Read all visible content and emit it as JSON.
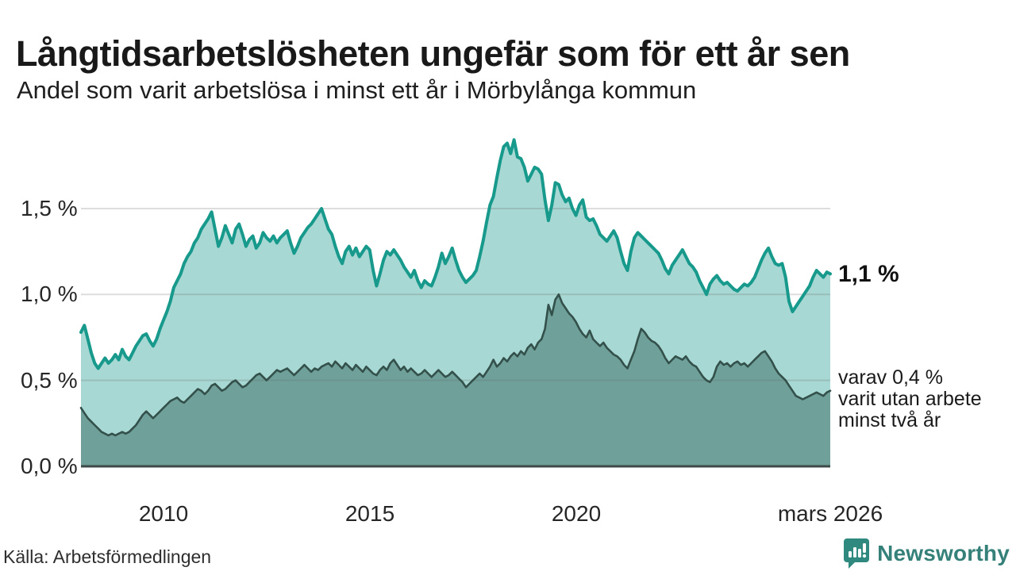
{
  "header": {
    "title": "Långtidsarbetslösheten ungefär som för ett år sen",
    "subtitle": "Andel som varit arbetslösa i minst ett år i Mörbylånga kommun"
  },
  "annotations": {
    "latest_total": "1,1 %",
    "sub_lines": [
      "varav 0,4 %",
      "varit utan arbete",
      "minst två år"
    ]
  },
  "footer": {
    "source": "Källa: Arbetsförmedlingen",
    "brand": "Newsworthy"
  },
  "colors": {
    "line_total": "#17998c",
    "fill_total": "#a8d8d3",
    "line_two_years": "#33504b",
    "fill_two_years": "#70a09a",
    "baseline": "#3d4a47",
    "gridline": "rgba(100,100,100,0.22)",
    "brand_teal": "#35817a",
    "logo_bg": "#2f897e"
  },
  "chart_data": {
    "type": "area",
    "title": "Långtidsarbetslösheten ungefär som för ett år sen",
    "subtitle": "Andel som varit arbetslösa i minst ett år i Mörbylånga kommun",
    "unit": "%",
    "x_start_year": 2008.0,
    "x_end_year": 2026.167,
    "points_per_year": 12,
    "ylim": [
      0,
      1.95
    ],
    "grid": true,
    "y_ticks": [
      {
        "value": 0.0,
        "label": "0,0 %"
      },
      {
        "value": 0.5,
        "label": "0,5 %"
      },
      {
        "value": 1.0,
        "label": "1,0 %"
      },
      {
        "value": 1.5,
        "label": "1,5 %"
      }
    ],
    "x_ticks": [
      {
        "year": 2010,
        "label": "2010"
      },
      {
        "year": 2015,
        "label": "2015"
      },
      {
        "year": 2020,
        "label": "2020"
      },
      {
        "year": 2026.167,
        "label": "mars 2026"
      }
    ],
    "latest": {
      "total": 1.1,
      "two_years": 0.4
    },
    "series": [
      {
        "name": "arbetslösa minst ett år",
        "values": [
          0.78,
          0.82,
          0.74,
          0.66,
          0.6,
          0.57,
          0.6,
          0.63,
          0.6,
          0.62,
          0.65,
          0.62,
          0.68,
          0.64,
          0.62,
          0.66,
          0.7,
          0.73,
          0.76,
          0.77,
          0.73,
          0.7,
          0.74,
          0.8,
          0.85,
          0.9,
          0.96,
          1.04,
          1.08,
          1.12,
          1.18,
          1.22,
          1.25,
          1.3,
          1.33,
          1.38,
          1.41,
          1.44,
          1.48,
          1.38,
          1.28,
          1.33,
          1.4,
          1.35,
          1.3,
          1.38,
          1.41,
          1.35,
          1.28,
          1.32,
          1.34,
          1.27,
          1.3,
          1.36,
          1.33,
          1.31,
          1.34,
          1.3,
          1.33,
          1.35,
          1.37,
          1.3,
          1.24,
          1.28,
          1.33,
          1.36,
          1.39,
          1.41,
          1.44,
          1.47,
          1.5,
          1.44,
          1.38,
          1.35,
          1.28,
          1.22,
          1.18,
          1.25,
          1.28,
          1.23,
          1.27,
          1.22,
          1.25,
          1.28,
          1.26,
          1.14,
          1.05,
          1.12,
          1.2,
          1.25,
          1.23,
          1.26,
          1.23,
          1.2,
          1.16,
          1.13,
          1.1,
          1.14,
          1.08,
          1.04,
          1.08,
          1.06,
          1.05,
          1.1,
          1.16,
          1.24,
          1.18,
          1.22,
          1.27,
          1.2,
          1.14,
          1.1,
          1.07,
          1.09,
          1.11,
          1.14,
          1.22,
          1.31,
          1.42,
          1.52,
          1.57,
          1.68,
          1.78,
          1.86,
          1.88,
          1.82,
          1.9,
          1.8,
          1.79,
          1.74,
          1.66,
          1.7,
          1.74,
          1.73,
          1.7,
          1.55,
          1.43,
          1.52,
          1.65,
          1.64,
          1.58,
          1.54,
          1.56,
          1.5,
          1.46,
          1.52,
          1.55,
          1.45,
          1.43,
          1.44,
          1.4,
          1.35,
          1.33,
          1.31,
          1.34,
          1.37,
          1.33,
          1.25,
          1.18,
          1.14,
          1.25,
          1.33,
          1.36,
          1.34,
          1.32,
          1.3,
          1.28,
          1.26,
          1.24,
          1.2,
          1.15,
          1.12,
          1.17,
          1.2,
          1.23,
          1.26,
          1.22,
          1.18,
          1.16,
          1.13,
          1.08,
          1.04,
          1.0,
          1.06,
          1.09,
          1.11,
          1.08,
          1.06,
          1.07,
          1.05,
          1.03,
          1.02,
          1.04,
          1.06,
          1.05,
          1.07,
          1.1,
          1.15,
          1.2,
          1.24,
          1.27,
          1.22,
          1.18,
          1.17,
          1.18,
          1.1,
          0.96,
          0.9,
          0.93,
          0.96,
          0.99,
          1.02,
          1.05,
          1.1,
          1.14,
          1.12,
          1.1,
          1.13,
          1.12
        ]
      },
      {
        "name": "varav utan arbete minst två år",
        "values": [
          0.34,
          0.31,
          0.28,
          0.26,
          0.24,
          0.22,
          0.2,
          0.19,
          0.18,
          0.19,
          0.18,
          0.19,
          0.2,
          0.19,
          0.2,
          0.22,
          0.24,
          0.27,
          0.3,
          0.32,
          0.3,
          0.28,
          0.3,
          0.32,
          0.34,
          0.36,
          0.38,
          0.39,
          0.4,
          0.38,
          0.37,
          0.39,
          0.41,
          0.43,
          0.45,
          0.44,
          0.42,
          0.44,
          0.47,
          0.48,
          0.46,
          0.44,
          0.45,
          0.47,
          0.49,
          0.5,
          0.48,
          0.46,
          0.47,
          0.49,
          0.51,
          0.53,
          0.54,
          0.52,
          0.5,
          0.52,
          0.54,
          0.56,
          0.55,
          0.56,
          0.57,
          0.55,
          0.53,
          0.55,
          0.57,
          0.59,
          0.57,
          0.55,
          0.57,
          0.56,
          0.58,
          0.59,
          0.6,
          0.58,
          0.61,
          0.59,
          0.57,
          0.6,
          0.58,
          0.56,
          0.59,
          0.57,
          0.55,
          0.58,
          0.56,
          0.54,
          0.53,
          0.56,
          0.58,
          0.56,
          0.6,
          0.62,
          0.59,
          0.56,
          0.58,
          0.55,
          0.57,
          0.55,
          0.53,
          0.54,
          0.56,
          0.54,
          0.52,
          0.54,
          0.56,
          0.54,
          0.52,
          0.53,
          0.55,
          0.53,
          0.51,
          0.49,
          0.46,
          0.48,
          0.5,
          0.52,
          0.54,
          0.52,
          0.55,
          0.58,
          0.62,
          0.58,
          0.6,
          0.63,
          0.61,
          0.64,
          0.66,
          0.64,
          0.67,
          0.65,
          0.69,
          0.71,
          0.68,
          0.72,
          0.74,
          0.8,
          0.94,
          0.88,
          0.97,
          1.0,
          0.95,
          0.92,
          0.89,
          0.87,
          0.84,
          0.8,
          0.77,
          0.75,
          0.79,
          0.74,
          0.72,
          0.7,
          0.72,
          0.69,
          0.67,
          0.65,
          0.64,
          0.62,
          0.59,
          0.57,
          0.62,
          0.67,
          0.74,
          0.8,
          0.78,
          0.75,
          0.73,
          0.72,
          0.7,
          0.67,
          0.63,
          0.6,
          0.62,
          0.64,
          0.63,
          0.62,
          0.64,
          0.61,
          0.59,
          0.58,
          0.55,
          0.52,
          0.5,
          0.49,
          0.52,
          0.58,
          0.61,
          0.59,
          0.6,
          0.58,
          0.6,
          0.61,
          0.59,
          0.6,
          0.58,
          0.6,
          0.62,
          0.64,
          0.66,
          0.67,
          0.64,
          0.61,
          0.57,
          0.54,
          0.52,
          0.5,
          0.47,
          0.44,
          0.41,
          0.4,
          0.39,
          0.4,
          0.41,
          0.42,
          0.43,
          0.42,
          0.41,
          0.43,
          0.44
        ]
      }
    ]
  }
}
